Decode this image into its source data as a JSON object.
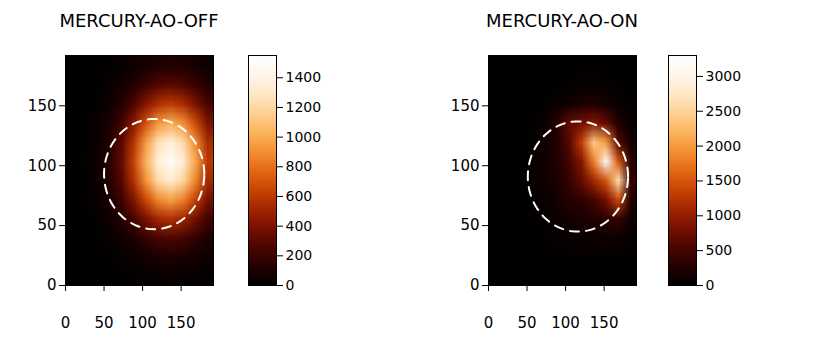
{
  "chart_data": [
    {
      "type": "heatmap",
      "title": "MERCURY-AO-OFF",
      "x": [
        8,
        24,
        40,
        56,
        72,
        88,
        104,
        120,
        136,
        152,
        168,
        184
      ],
      "y": [
        184,
        168,
        152,
        136,
        120,
        104,
        88,
        72,
        56,
        40,
        24,
        8
      ],
      "values": [
        [
          0,
          1,
          4,
          11,
          25,
          50,
          81,
          107,
          117,
          105,
          77,
          46
        ],
        [
          1,
          3,
          9,
          27,
          64,
          127,
          205,
          272,
          297,
          266,
          195,
          118
        ],
        [
          1,
          5,
          19,
          55,
          132,
          260,
          420,
          558,
          609,
          545,
          400,
          241
        ],
        [
          2,
          9,
          32,
          91,
          219,
          433,
          700,
          930,
          1014,
          907,
          667,
          402
        ],
        [
          3,
          12,
          43,
          123,
          295,
          584,
          944,
          1254,
          1368,
          1224,
          899,
          542
        ],
        [
          3,
          13,
          47,
          135,
          324,
          640,
          1035,
          1375,
          1500,
          1342,
          986,
          594
        ],
        [
          3,
          12,
          42,
          120,
          288,
          569,
          920,
          1222,
          1334,
          1193,
          877,
          528
        ],
        [
          2,
          8,
          30,
          87,
          208,
          410,
          663,
          881,
          962,
          860,
          632,
          381
        ],
        [
          1,
          5,
          18,
          51,
          122,
          240,
          388,
          516,
          563,
          503,
          370,
          223
        ],
        [
          1,
          2,
          8,
          24,
          58,
          114,
          184,
          245,
          267,
          239,
          176,
          106
        ],
        [
          0,
          1,
          3,
          9,
          22,
          44,
          71,
          95,
          104,
          93,
          68,
          41
        ],
        [
          0,
          0,
          1,
          3,
          7,
          13,
          22,
          29,
          32,
          28,
          21,
          12
        ]
      ],
      "xlim": [
        0,
        192
      ],
      "ylim": [
        0,
        192
      ],
      "xticks": [
        0,
        50,
        100,
        150
      ],
      "yticks": [
        0,
        50,
        100,
        150
      ],
      "colorbar_range": [
        0,
        1550
      ],
      "colorbar_ticks": [
        0,
        200,
        400,
        600,
        800,
        1000,
        1200,
        1400
      ],
      "ellipse": {
        "cx": 115,
        "cy": 93,
        "rx": 65,
        "ry": 46,
        "color": "#ffffff",
        "line_style": "dashed"
      }
    },
    {
      "type": "heatmap",
      "title": "MERCURY-AO-ON",
      "x": [
        8,
        24,
        40,
        56,
        72,
        88,
        104,
        120,
        136,
        152,
        168,
        184
      ],
      "y": [
        184,
        168,
        152,
        136,
        120,
        104,
        88,
        72,
        56,
        40,
        24,
        8
      ],
      "values": [
        [
          0,
          0,
          0,
          0,
          0,
          5,
          10,
          15,
          15,
          10,
          5,
          0
        ],
        [
          0,
          0,
          0,
          0,
          10,
          20,
          40,
          60,
          60,
          40,
          20,
          5
        ],
        [
          0,
          0,
          0,
          10,
          30,
          60,
          120,
          200,
          250,
          150,
          60,
          20
        ],
        [
          0,
          0,
          5,
          20,
          80,
          300,
          700,
          800,
          900,
          700,
          250,
          60
        ],
        [
          0,
          0,
          10,
          40,
          120,
          250,
          600,
          1300,
          2400,
          2000,
          600,
          150
        ],
        [
          0,
          0,
          10,
          40,
          120,
          250,
          500,
          900,
          1800,
          3200,
          1500,
          300
        ],
        [
          0,
          0,
          10,
          40,
          110,
          200,
          400,
          700,
          1100,
          1500,
          2600,
          400
        ],
        [
          0,
          0,
          5,
          30,
          80,
          150,
          300,
          350,
          500,
          800,
          1400,
          250
        ],
        [
          0,
          0,
          5,
          20,
          50,
          100,
          150,
          200,
          250,
          300,
          400,
          120
        ],
        [
          0,
          0,
          0,
          10,
          25,
          50,
          70,
          90,
          100,
          110,
          100,
          40
        ],
        [
          0,
          0,
          0,
          5,
          10,
          20,
          25,
          30,
          30,
          30,
          25,
          10
        ],
        [
          0,
          0,
          0,
          0,
          5,
          5,
          10,
          10,
          10,
          10,
          5,
          0
        ]
      ],
      "xlim": [
        0,
        192
      ],
      "ylim": [
        0,
        192
      ],
      "xticks": [
        0,
        50,
        100,
        150
      ],
      "yticks": [
        0,
        50,
        100,
        150
      ],
      "colorbar_range": [
        0,
        3300
      ],
      "colorbar_ticks": [
        0,
        500,
        1000,
        1500,
        2000,
        2500,
        3000
      ],
      "ellipse": {
        "cx": 116,
        "cy": 91,
        "rx": 65,
        "ry": 46,
        "color": "#ffffff",
        "line_style": "dashed"
      }
    }
  ]
}
